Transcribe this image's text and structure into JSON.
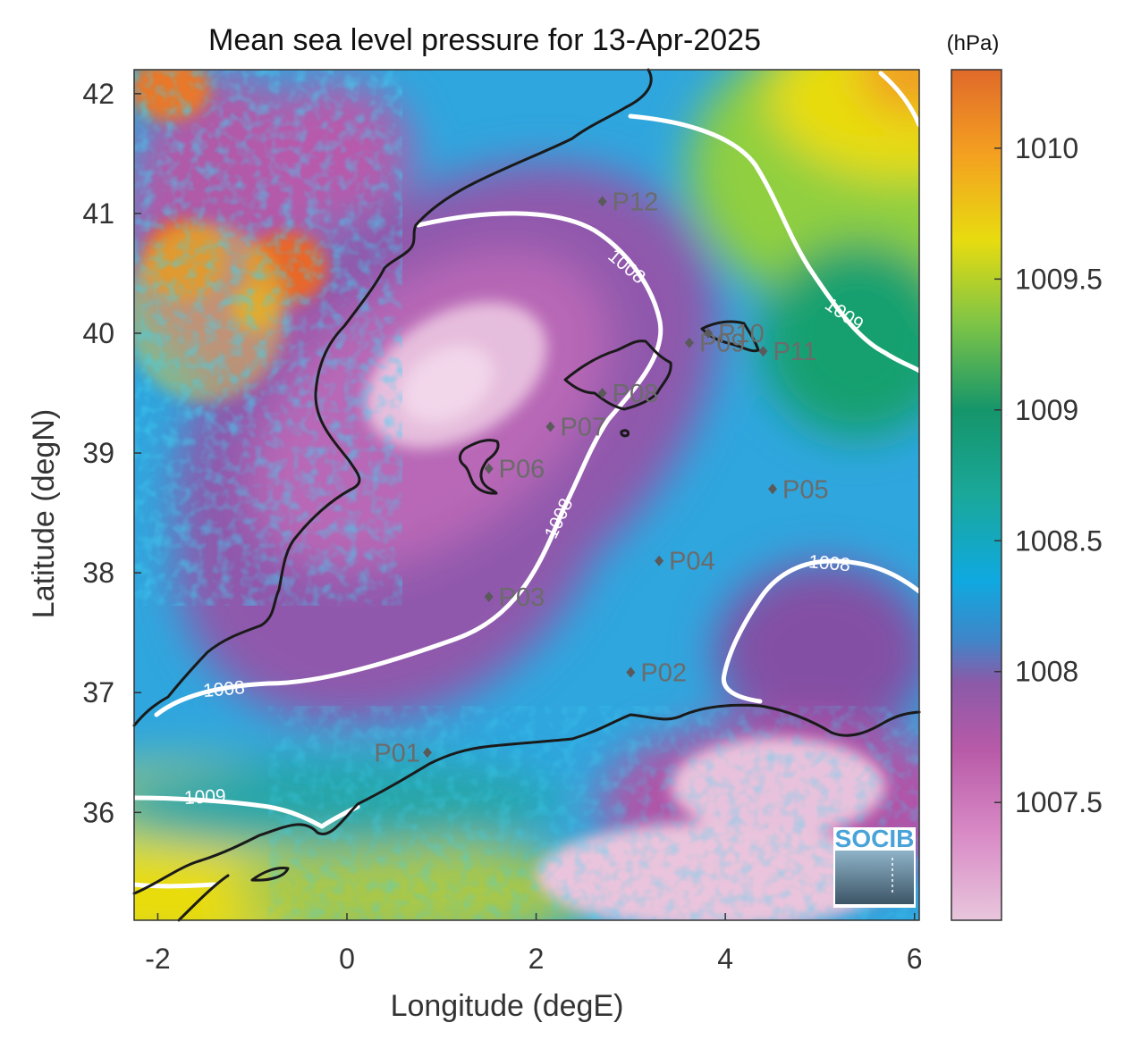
{
  "title": "Mean sea level pressure for 13-Apr-2025",
  "colorbar": {
    "unit": "(hPa)",
    "range": [
      1007.05,
      1010.3
    ],
    "ticks": [
      "1007.5",
      "1008",
      "1008.5",
      "1009",
      "1009.5",
      "1010"
    ],
    "tick_values": [
      1007.5,
      1008,
      1008.5,
      1009,
      1009.5,
      1010
    ],
    "colormap": [
      "#e8c6dc",
      "#c960b2",
      "#8a5aa8",
      "#2f8fd0",
      "#0fa9e0",
      "#1aa89a",
      "#15956a",
      "#7cc447",
      "#e8dc10",
      "#f4a020",
      "#e06a2a"
    ]
  },
  "axes": {
    "xlabel": "Longitude (degE)",
    "ylabel": "Latitude (degN)",
    "xlim": [
      -2.25,
      6.05
    ],
    "ylim": [
      35.1,
      42.2
    ],
    "xticks": [
      "-2",
      "0",
      "2",
      "4",
      "6"
    ],
    "xtick_values": [
      -2,
      0,
      2,
      4,
      6
    ],
    "yticks": [
      "36",
      "37",
      "38",
      "39",
      "40",
      "41",
      "42"
    ],
    "ytick_values": [
      36,
      37,
      38,
      39,
      40,
      41,
      42
    ]
  },
  "contour_labels": [
    {
      "text": "1008",
      "lon": 2.95,
      "lat": 40.55
    },
    {
      "text": "1008",
      "lon": 2.25,
      "lat": 38.45
    },
    {
      "text": "1008",
      "lon": 5.1,
      "lat": 38.07
    },
    {
      "text": "1008",
      "lon": -1.3,
      "lat": 37.02
    },
    {
      "text": "1009",
      "lon": 5.25,
      "lat": 40.15
    },
    {
      "text": "1009",
      "lon": -1.5,
      "lat": 36.12
    }
  ],
  "stations": [
    {
      "label": "P01",
      "lon": 0.85,
      "lat": 36.5
    },
    {
      "label": "P02",
      "lon": 3.0,
      "lat": 37.17
    },
    {
      "label": "P03",
      "lon": 1.5,
      "lat": 37.8
    },
    {
      "label": "P04",
      "lon": 3.3,
      "lat": 38.1
    },
    {
      "label": "P05",
      "lon": 4.5,
      "lat": 38.7
    },
    {
      "label": "P06",
      "lon": 1.5,
      "lat": 38.87
    },
    {
      "label": "P07",
      "lon": 2.15,
      "lat": 39.22
    },
    {
      "label": "P08",
      "lon": 2.7,
      "lat": 39.5
    },
    {
      "label": "P09",
      "lon": 3.62,
      "lat": 39.92
    },
    {
      "label": "P10",
      "lon": 3.82,
      "lat": 40.0
    },
    {
      "label": "P11",
      "lon": 4.4,
      "lat": 39.85
    },
    {
      "label": "P12",
      "lon": 2.7,
      "lat": 41.1
    }
  ],
  "logo": {
    "text": "SOCIB"
  }
}
